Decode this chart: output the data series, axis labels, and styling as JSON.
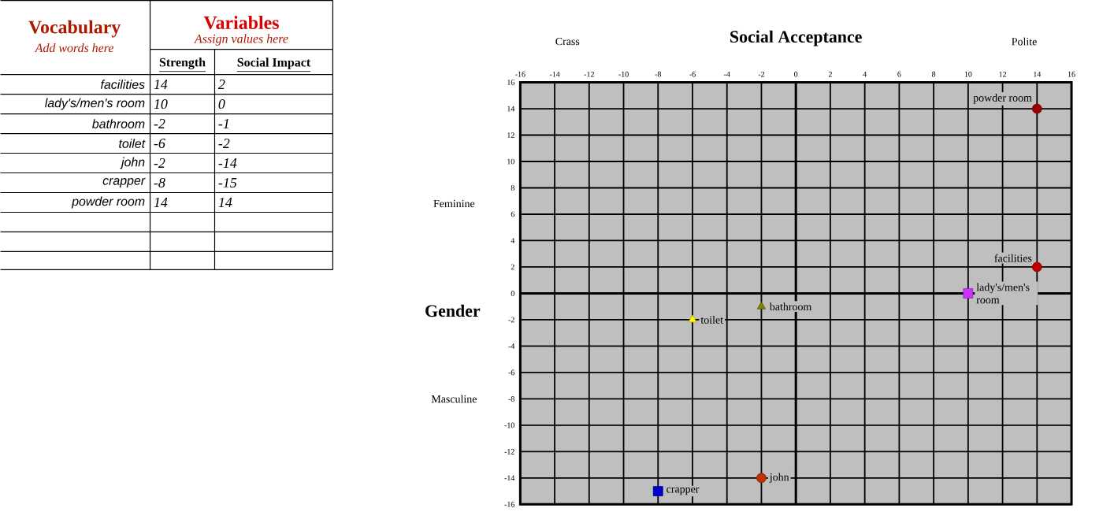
{
  "chart_data": {
    "type": "scatter",
    "title": "Social Acceptance",
    "ylabel": "Gender",
    "xlim": [
      -16,
      16
    ],
    "ylim": [
      -16,
      16
    ],
    "xticks": [
      -16,
      -14,
      -12,
      -10,
      -8,
      -6,
      -4,
      -2,
      0,
      2,
      4,
      6,
      8,
      10,
      12,
      14,
      16
    ],
    "yticks": [
      -16,
      -14,
      -12,
      -10,
      -8,
      -6,
      -4,
      -2,
      0,
      2,
      4,
      6,
      8,
      10,
      12,
      14,
      16
    ],
    "grid": true,
    "series": [
      {
        "name": "facilities",
        "color": "#c00000",
        "marker": "circle",
        "x": [
          14
        ],
        "values": [
          2
        ]
      },
      {
        "name": "lady's/men's room",
        "color": "#cc33ff",
        "marker": "square",
        "x": [
          10
        ],
        "values": [
          0
        ]
      },
      {
        "name": "bathroom",
        "color": "#808000",
        "marker": "triangle",
        "x": [
          -2
        ],
        "values": [
          -1
        ]
      },
      {
        "name": "toilet",
        "color": "#ffff00",
        "marker": "triangle",
        "x": [
          -6
        ],
        "values": [
          -2
        ]
      },
      {
        "name": "john",
        "color": "#c03000",
        "marker": "circle",
        "x": [
          -2
        ],
        "values": [
          -14
        ]
      },
      {
        "name": "crapper",
        "color": "#0000cc",
        "marker": "square",
        "x": [
          -8
        ],
        "values": [
          -15
        ]
      },
      {
        "name": "powder room",
        "color": "#990000",
        "marker": "circle",
        "x": [
          14
        ],
        "values": [
          14
        ]
      }
    ],
    "annotations": [
      "Vocabulary",
      "Add words here",
      "Variables",
      "Assign values here",
      "Strength",
      "Social Impact",
      "facilities",
      "14",
      "2",
      "lady's/men's room",
      "10",
      "0",
      "bathroom",
      "-2",
      "-1",
      "toilet",
      "-6",
      "-2",
      "john",
      "-2",
      "-14",
      "crapper",
      "-8",
      "-15",
      "powder room",
      "14",
      "14",
      "Crass",
      "Polite",
      "Feminine",
      "Masculine"
    ]
  }
}
